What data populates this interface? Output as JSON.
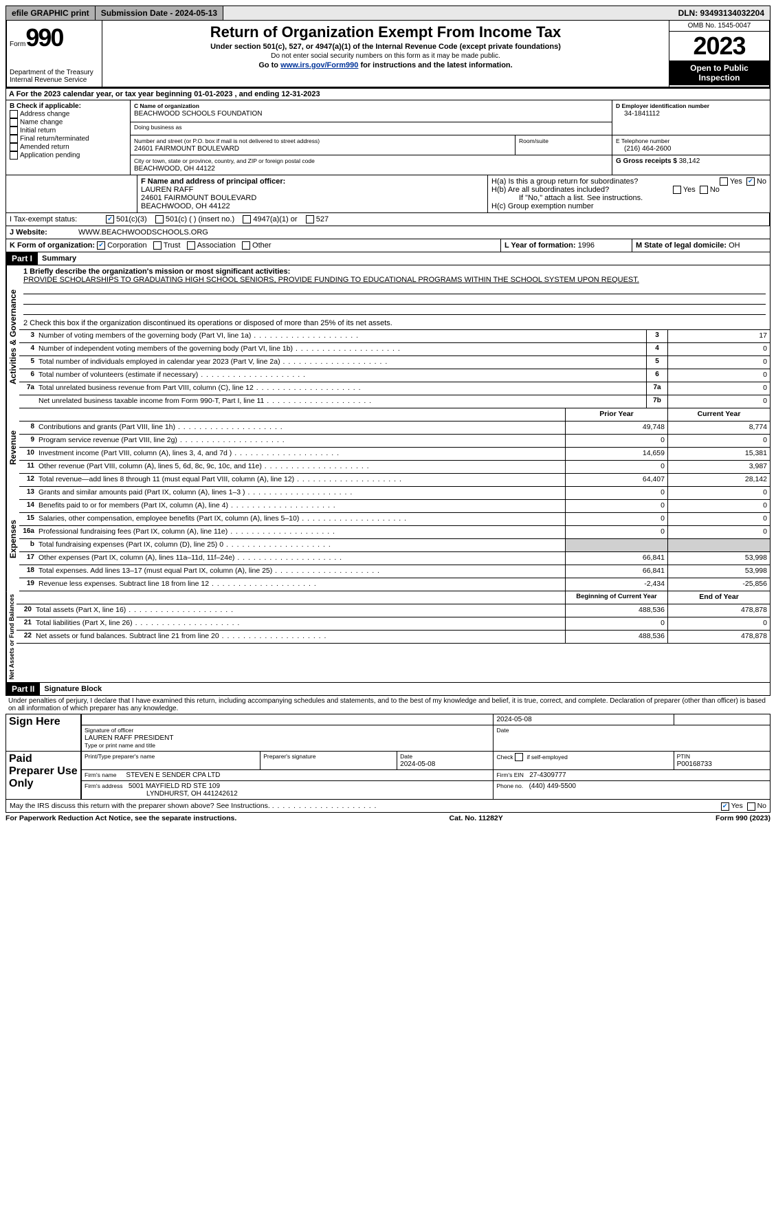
{
  "topbar": {
    "efile": "efile GRAPHIC print",
    "submission": "Submission Date - 2024-05-13",
    "dln": "DLN: 93493134032204"
  },
  "header": {
    "form_word": "Form",
    "form_num": "990",
    "dept": "Department of the Treasury Internal Revenue Service",
    "title": "Return of Organization Exempt From Income Tax",
    "sub1": "Under section 501(c), 527, or 4947(a)(1) of the Internal Revenue Code (except private foundations)",
    "sub2": "Do not enter social security numbers on this form as it may be made public.",
    "sub3_pre": "Go to ",
    "sub3_link": "www.irs.gov/Form990",
    "sub3_post": " for instructions and the latest information.",
    "omb": "OMB No. 1545-0047",
    "year": "2023",
    "open": "Open to Public Inspection"
  },
  "line_a": "A   For the 2023 calendar year, or tax year beginning 01-01-2023    , and ending 12-31-2023",
  "box_b": {
    "title": "B Check if applicable:",
    "opts": [
      "Address change",
      "Name change",
      "Initial return",
      "Final return/terminated",
      "Amended return",
      "Application pending"
    ]
  },
  "box_c": {
    "label_name": "C Name of organization",
    "name": "BEACHWOOD SCHOOLS FOUNDATION",
    "dba_label": "Doing business as",
    "addr_label": "Number and street (or P.O. box if mail is not delivered to street address)",
    "room_label": "Room/suite",
    "addr": "24601 FAIRMOUNT BOULEVARD",
    "city_label": "City or town, state or province, country, and ZIP or foreign postal code",
    "city": "BEACHWOOD, OH  44122"
  },
  "box_d": {
    "label": "D Employer identification number",
    "val": "34-1841112"
  },
  "box_e": {
    "label": "E Telephone number",
    "val": "(216) 464-2600"
  },
  "box_g": {
    "label": "G Gross receipts $",
    "val": "38,142"
  },
  "box_f": {
    "label": "F Name and address of principal officer:",
    "lines": [
      "LAUREN RAFF",
      "24601 FAIRMOUNT BOULEVARD",
      "BEACHWOOD, OH  44122"
    ]
  },
  "box_h": {
    "ha": "H(a)  Is this a group return for subordinates?",
    "hb": "H(b)  Are all subordinates included?",
    "hb_note": "If \"No,\" attach a list. See instructions.",
    "hc": "H(c)  Group exemption number"
  },
  "box_i": {
    "label": "I    Tax-exempt status:",
    "opts": [
      "501(c)(3)",
      "501(c) (  ) (insert no.)",
      "4947(a)(1) or",
      "527"
    ]
  },
  "box_j": {
    "label": "J    Website:",
    "val": "WWW.BEACHWOODSCHOOLS.ORG"
  },
  "box_k": {
    "label": "K Form of organization:",
    "opts": [
      "Corporation",
      "Trust",
      "Association",
      "Other"
    ]
  },
  "box_l": {
    "label": "L Year of formation:",
    "val": "1996"
  },
  "box_m": {
    "label": "M State of legal domicile:",
    "val": "OH"
  },
  "part1": {
    "label": "Part I",
    "title": "Summary",
    "l1_label": "1   Briefly describe the organization's mission or most significant activities:",
    "l1_text": "PROVIDE SCHOLARSHIPS TO GRADUATING HIGH SCHOOL SENIORS, PROVIDE FUNDING TO EDUCATIONAL PROGRAMS WITHIN THE SCHOOL SYSTEM UPON REQUEST.",
    "l2": "2   Check this box        if the organization discontinued its operations or disposed of more than 25% of its net assets.",
    "groups": {
      "ag": "Activities & Governance",
      "rev": "Revenue",
      "exp": "Expenses",
      "net": "Net Assets or Fund Balances"
    },
    "headers": {
      "prior": "Prior Year",
      "current": "Current Year",
      "begin": "Beginning of Current Year",
      "end": "End of Year"
    },
    "lines_ag": [
      {
        "n": "3",
        "d": "Number of voting members of the governing body (Part VI, line 1a)",
        "box": "3",
        "v": "17"
      },
      {
        "n": "4",
        "d": "Number of independent voting members of the governing body (Part VI, line 1b)",
        "box": "4",
        "v": "0"
      },
      {
        "n": "5",
        "d": "Total number of individuals employed in calendar year 2023 (Part V, line 2a)",
        "box": "5",
        "v": "0"
      },
      {
        "n": "6",
        "d": "Total number of volunteers (estimate if necessary)",
        "box": "6",
        "v": "0"
      },
      {
        "n": "7a",
        "d": "Total unrelated business revenue from Part VIII, column (C), line 12",
        "box": "7a",
        "v": "0"
      },
      {
        "n": "",
        "d": "Net unrelated business taxable income from Form 990-T, Part I, line 11",
        "box": "7b",
        "v": "0"
      }
    ],
    "lines_rev": [
      {
        "n": "8",
        "d": "Contributions and grants (Part VIII, line 1h)",
        "p": "49,748",
        "c": "8,774"
      },
      {
        "n": "9",
        "d": "Program service revenue (Part VIII, line 2g)",
        "p": "0",
        "c": "0"
      },
      {
        "n": "10",
        "d": "Investment income (Part VIII, column (A), lines 3, 4, and 7d )",
        "p": "14,659",
        "c": "15,381"
      },
      {
        "n": "11",
        "d": "Other revenue (Part VIII, column (A), lines 5, 6d, 8c, 9c, 10c, and 11e)",
        "p": "0",
        "c": "3,987"
      },
      {
        "n": "12",
        "d": "Total revenue—add lines 8 through 11 (must equal Part VIII, column (A), line 12)",
        "p": "64,407",
        "c": "28,142"
      }
    ],
    "lines_exp": [
      {
        "n": "13",
        "d": "Grants and similar amounts paid (Part IX, column (A), lines 1–3 )",
        "p": "0",
        "c": "0"
      },
      {
        "n": "14",
        "d": "Benefits paid to or for members (Part IX, column (A), line 4)",
        "p": "0",
        "c": "0"
      },
      {
        "n": "15",
        "d": "Salaries, other compensation, employee benefits (Part IX, column (A), lines 5–10)",
        "p": "0",
        "c": "0"
      },
      {
        "n": "16a",
        "d": "Professional fundraising fees (Part IX, column (A), line 11e)",
        "p": "0",
        "c": "0"
      },
      {
        "n": "b",
        "d": "Total fundraising expenses (Part IX, column (D), line 25) 0",
        "p": "GRAY",
        "c": "GRAY"
      },
      {
        "n": "17",
        "d": "Other expenses (Part IX, column (A), lines 11a–11d, 11f–24e)",
        "p": "66,841",
        "c": "53,998"
      },
      {
        "n": "18",
        "d": "Total expenses. Add lines 13–17 (must equal Part IX, column (A), line 25)",
        "p": "66,841",
        "c": "53,998"
      },
      {
        "n": "19",
        "d": "Revenue less expenses. Subtract line 18 from line 12",
        "p": "-2,434",
        "c": "-25,856"
      }
    ],
    "lines_net": [
      {
        "n": "20",
        "d": "Total assets (Part X, line 16)",
        "p": "488,536",
        "c": "478,878"
      },
      {
        "n": "21",
        "d": "Total liabilities (Part X, line 26)",
        "p": "0",
        "c": "0"
      },
      {
        "n": "22",
        "d": "Net assets or fund balances. Subtract line 21 from line 20",
        "p": "488,536",
        "c": "478,878"
      }
    ]
  },
  "part2": {
    "label": "Part II",
    "title": "Signature Block",
    "decl": "Under penalties of perjury, I declare that I have examined this return, including accompanying schedules and statements, and to the best of my knowledge and belief, it is true, correct, and complete. Declaration of preparer (other than officer) is based on all information of which preparer has any knowledge.",
    "sign_here": "Sign Here",
    "sig_officer": "Signature of officer",
    "sig_date_v": "2024-05-08",
    "sig_date": "Date",
    "officer_name": "LAUREN RAFF  PRESIDENT",
    "type_name": "Type or print name and title",
    "paid": "Paid Preparer Use Only",
    "prep_name_l": "Print/Type preparer's name",
    "prep_sig_l": "Preparer's signature",
    "prep_date": "2024-05-08",
    "check_self": "Check       if self-employed",
    "ptin_l": "PTIN",
    "ptin": "P00168733",
    "firm_name_l": "Firm's name",
    "firm_name": "STEVEN E SENDER CPA LTD",
    "firm_ein_l": "Firm's EIN",
    "firm_ein": "27-4309777",
    "firm_addr_l": "Firm's address",
    "firm_addr": "5001 MAYFIELD RD STE 109",
    "firm_city": "LYNDHURST, OH  441242612",
    "phone_l": "Phone no.",
    "phone": "(440) 449-5500",
    "discuss": "May the IRS discuss this return with the preparer shown above? See Instructions."
  },
  "footer": {
    "left": "For Paperwork Reduction Act Notice, see the separate instructions.",
    "mid": "Cat. No. 11282Y",
    "right": "Form 990 (2023)"
  }
}
